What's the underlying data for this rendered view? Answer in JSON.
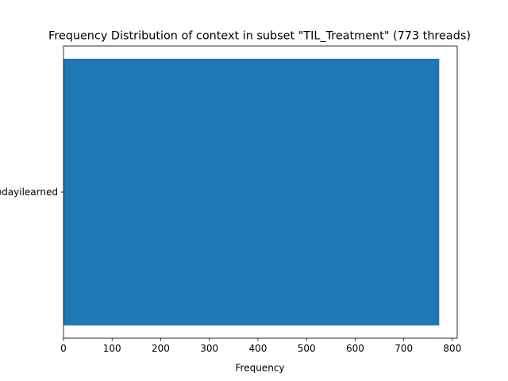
{
  "chart_data": {
    "type": "bar",
    "orientation": "horizontal",
    "title": "Frequency Distribution of context in subset \"TIL_Treatment\" (773 threads)",
    "xlabel": "Frequency",
    "ylabel": "",
    "categories": [
      "todayilearned"
    ],
    "values": [
      773
    ],
    "xlim": [
      0,
      810
    ],
    "xticks": [
      0,
      100,
      200,
      300,
      400,
      500,
      600,
      700,
      800
    ],
    "grid": false,
    "bar_color": "#1f77b4"
  }
}
